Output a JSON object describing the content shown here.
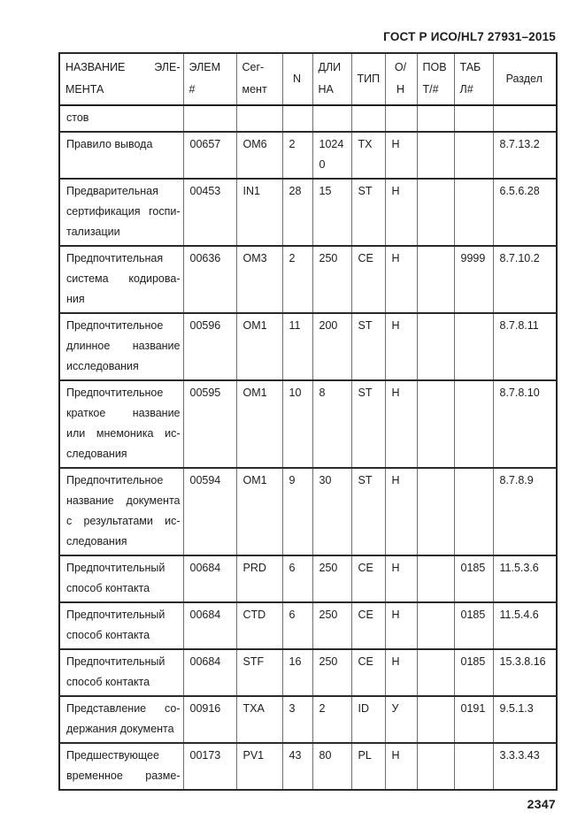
{
  "page": {
    "header_title": "ГОСТ Р ИСО/HL7 27931–2015",
    "page_number": "2347"
  },
  "table": {
    "header": [
      {
        "id": "name",
        "lines": [
          "НАЗВАНИЕ ЭЛЕ-",
          "МЕНТА"
        ]
      },
      {
        "id": "elem",
        "lines": [
          "ЭЛЕМ",
          "#"
        ]
      },
      {
        "id": "segment",
        "lines": [
          "Сег-",
          "мент"
        ]
      },
      {
        "id": "n",
        "lines": [
          "N"
        ]
      },
      {
        "id": "length",
        "lines": [
          "ДЛИ",
          "НА"
        ]
      },
      {
        "id": "type",
        "lines": [
          "ТИП"
        ]
      },
      {
        "id": "opt",
        "lines": [
          "О/Н"
        ]
      },
      {
        "id": "repeat",
        "lines": [
          "ПОВ",
          "Т/#"
        ]
      },
      {
        "id": "table",
        "lines": [
          "ТАБ",
          "Л#"
        ]
      },
      {
        "id": "section",
        "lines": [
          "Раздел"
        ]
      }
    ],
    "rows": [
      {
        "cells": [
          [
            "стов"
          ],
          [],
          [],
          [],
          [],
          [],
          [],
          [],
          [],
          []
        ]
      },
      {
        "cells": [
          [
            "Правило вывода"
          ],
          [
            "00657"
          ],
          [
            "OM6"
          ],
          [
            "2"
          ],
          [
            "1024",
            "0"
          ],
          [
            "TX"
          ],
          [
            "Н"
          ],
          [],
          [],
          [
            "8.7.13.2"
          ]
        ]
      },
      {
        "cells": [
          [
            "Предварительная",
            "сертификация госпи-",
            "тализации"
          ],
          [
            "00453"
          ],
          [
            "IN1"
          ],
          [
            "28"
          ],
          [
            "15"
          ],
          [
            "ST"
          ],
          [
            "Н"
          ],
          [],
          [],
          [
            "6.5.6.28"
          ]
        ]
      },
      {
        "cells": [
          [
            "Предпочтительная",
            "система кодирова-",
            "ния"
          ],
          [
            "00636"
          ],
          [
            "OM3"
          ],
          [
            "2"
          ],
          [
            "250"
          ],
          [
            "CE"
          ],
          [
            "Н"
          ],
          [],
          [
            "9999"
          ],
          [
            "8.7.10.2"
          ]
        ]
      },
      {
        "cells": [
          [
            "Предпочтительное",
            "длинное название",
            "исследования"
          ],
          [
            "00596"
          ],
          [
            "OM1"
          ],
          [
            "11"
          ],
          [
            "200"
          ],
          [
            "ST"
          ],
          [
            "Н"
          ],
          [],
          [],
          [
            "8.7.8.11"
          ]
        ]
      },
      {
        "cells": [
          [
            "Предпочтительное",
            "краткое название",
            "или мнемоника ис-",
            "следования"
          ],
          [
            "00595"
          ],
          [
            "OM1"
          ],
          [
            "10"
          ],
          [
            "8"
          ],
          [
            "ST"
          ],
          [
            "Н"
          ],
          [],
          [],
          [
            "8.7.8.10"
          ]
        ]
      },
      {
        "cells": [
          [
            "Предпочтительное",
            "название документа",
            "с результатами ис-",
            "следования"
          ],
          [
            "00594"
          ],
          [
            "OM1"
          ],
          [
            "9"
          ],
          [
            "30"
          ],
          [
            "ST"
          ],
          [
            "Н"
          ],
          [],
          [],
          [
            "8.7.8.9"
          ]
        ]
      },
      {
        "cells": [
          [
            "Предпочтительный",
            "способ контакта"
          ],
          [
            "00684"
          ],
          [
            "PRD"
          ],
          [
            "6"
          ],
          [
            "250"
          ],
          [
            "CE"
          ],
          [
            "Н"
          ],
          [],
          [
            "0185"
          ],
          [
            "11.5.3.6"
          ]
        ]
      },
      {
        "cells": [
          [
            "Предпочтительный",
            "способ контакта"
          ],
          [
            "00684"
          ],
          [
            "CTD"
          ],
          [
            "6"
          ],
          [
            "250"
          ],
          [
            "CE"
          ],
          [
            "Н"
          ],
          [],
          [
            "0185"
          ],
          [
            "11.5.4.6"
          ]
        ]
      },
      {
        "cells": [
          [
            "Предпочтительный",
            "способ контакта"
          ],
          [
            "00684"
          ],
          [
            "STF"
          ],
          [
            "16"
          ],
          [
            "250"
          ],
          [
            "CE"
          ],
          [
            "Н"
          ],
          [],
          [
            "0185"
          ],
          [
            "15.3.8.16"
          ]
        ]
      },
      {
        "cells": [
          [
            "Представление со-",
            "держания документа"
          ],
          [
            "00916"
          ],
          [
            "TXA"
          ],
          [
            "3"
          ],
          [
            "2"
          ],
          [
            "ID"
          ],
          [
            "У"
          ],
          [],
          [
            "0191"
          ],
          [
            "9.5.1.3"
          ]
        ]
      },
      {
        "cells": [
          [
            "Предшествующее",
            "временное разме-"
          ],
          [
            "00173"
          ],
          [
            "PV1"
          ],
          [
            "43"
          ],
          [
            "80"
          ],
          [
            "PL"
          ],
          [
            "Н"
          ],
          [],
          [],
          [
            "3.3.3.43"
          ]
        ],
        "hyphen_continues": true
      }
    ]
  }
}
